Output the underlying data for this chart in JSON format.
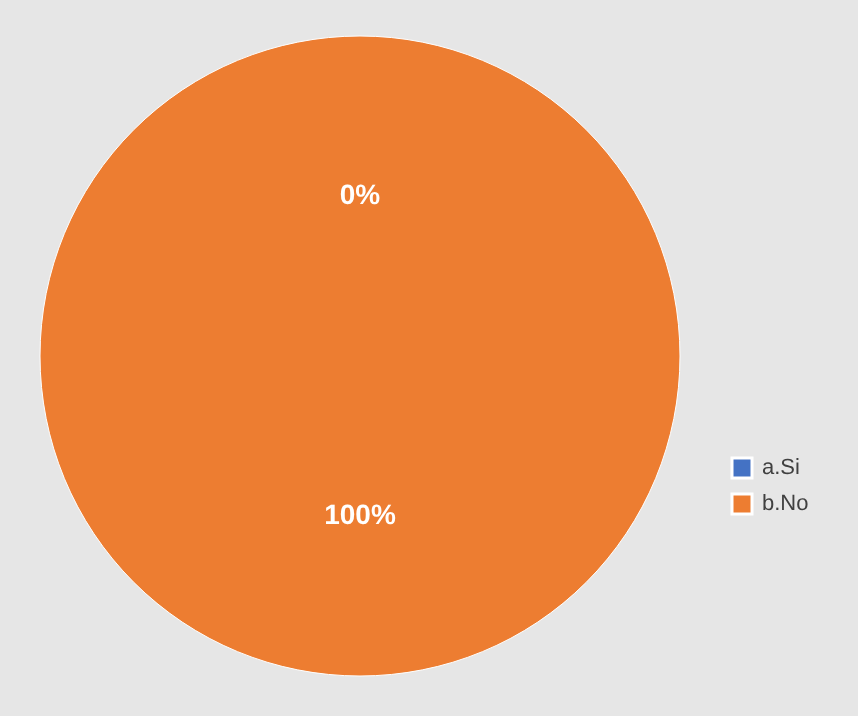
{
  "chart_data": {
    "type": "pie",
    "categories": [
      "a.Si",
      "b.No"
    ],
    "values": [
      0,
      100
    ],
    "colors": [
      "#4472c4",
      "#ed7d31"
    ],
    "value_labels": [
      "0%",
      "100%"
    ],
    "legend": "right"
  }
}
